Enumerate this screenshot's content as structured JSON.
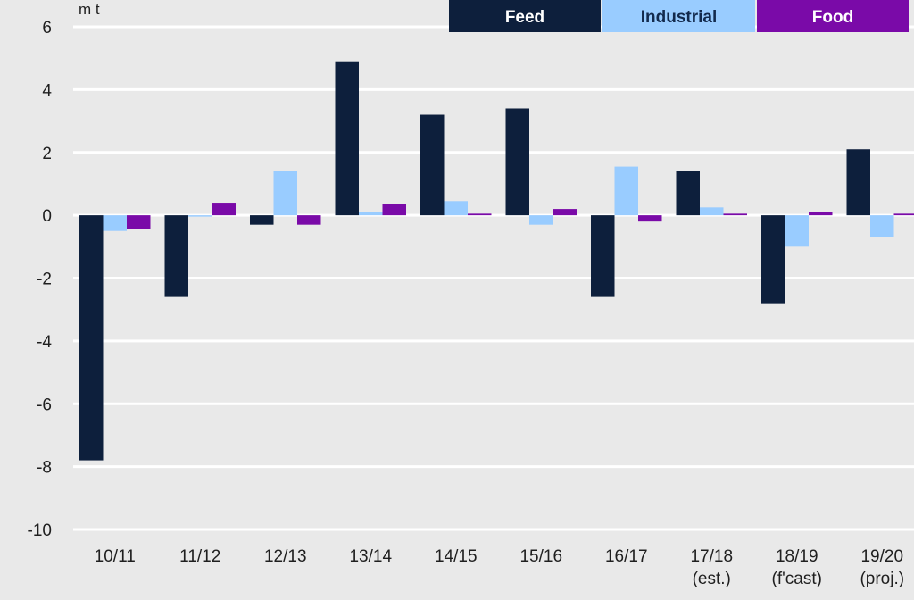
{
  "chart_data": {
    "type": "bar",
    "ylabel": "m t",
    "ylim": [
      -10,
      6
    ],
    "yticks": [
      6,
      4,
      2,
      0,
      -2,
      -4,
      -6,
      -8,
      -10
    ],
    "grid": true,
    "legend_position": "top-right",
    "categories": [
      [
        "10/11"
      ],
      [
        "11/12"
      ],
      [
        "12/13"
      ],
      [
        "13/14"
      ],
      [
        "14/15"
      ],
      [
        "15/16"
      ],
      [
        "16/17"
      ],
      [
        "17/18",
        "(est.)"
      ],
      [
        "18/19",
        "(f'cast)"
      ],
      [
        "19/20",
        "(proj.)"
      ]
    ],
    "series": [
      {
        "name": "Feed",
        "color": "#0d1f3c",
        "values": [
          -7.8,
          -2.6,
          -0.3,
          4.9,
          3.2,
          3.4,
          -2.6,
          1.4,
          -2.8,
          2.1
        ]
      },
      {
        "name": "Industrial",
        "color": "#99ccff",
        "values": [
          -0.5,
          0.0,
          1.4,
          0.1,
          0.45,
          -0.3,
          1.55,
          0.25,
          -1.0,
          -0.7
        ]
      },
      {
        "name": "Food",
        "color": "#7a0aa8",
        "values": [
          -0.45,
          0.4,
          -0.3,
          0.35,
          0.05,
          0.2,
          -0.2,
          0.05,
          0.1,
          0.05
        ]
      }
    ]
  }
}
